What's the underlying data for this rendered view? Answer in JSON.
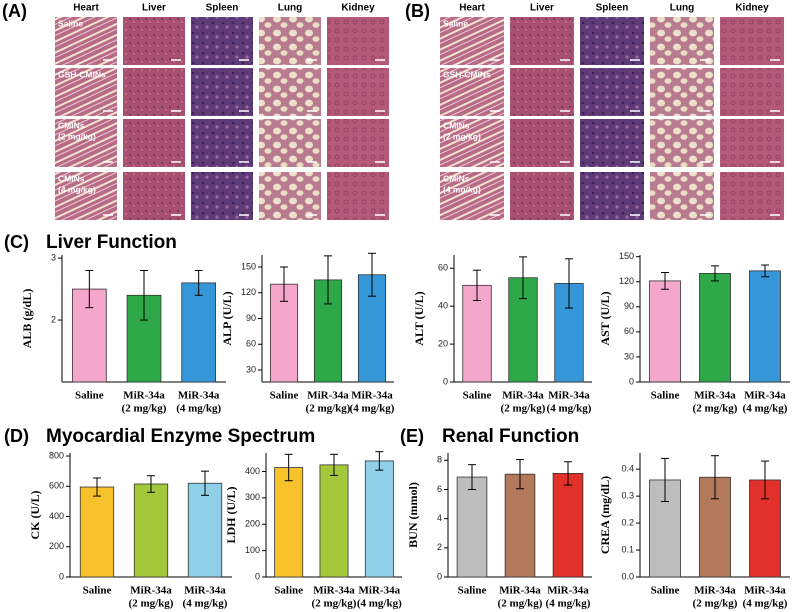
{
  "panels": [
    {
      "label": "(A)",
      "columns": [
        "Heart",
        "Liver",
        "Spleen",
        "Lung",
        "Kidney"
      ],
      "rows": [
        [
          "Saline"
        ],
        [
          "GSH-CMINs"
        ],
        [
          "CMINs",
          "(2 mg/kg)"
        ],
        [
          "CMINs",
          "(4 mg/kg)"
        ]
      ]
    },
    {
      "label": "(B)",
      "columns": [
        "Heart",
        "Liver",
        "Spleen",
        "Lung",
        "Kidney"
      ],
      "rows": [
        [
          "Saline"
        ],
        [
          "GSH-CMINs"
        ],
        [
          "CMINs",
          "(2 mg/kg)"
        ],
        [
          "CMINs",
          "(4 mg/kg)"
        ]
      ]
    }
  ],
  "sections": [
    {
      "label": "(C)",
      "title": "Liver Function"
    },
    {
      "label": "(D)",
      "title": "Myocardial Enzyme Spectrum"
    },
    {
      "label": "(E)",
      "title": "Renal Function"
    }
  ],
  "chart_data": [
    {
      "type": "bar",
      "ylabel": "ALB (g/dL)",
      "categories": [
        [
          "Saline"
        ],
        [
          "MiR-34a",
          "(2 mg/kg)"
        ],
        [
          "MiR-34a",
          "(4 mg/kg)"
        ]
      ],
      "values": [
        2.5,
        2.4,
        2.6
      ],
      "errors": [
        0.3,
        0.4,
        0.2
      ],
      "colors": [
        "#f4a6cb",
        "#2fa84a",
        "#3597d8"
      ],
      "ylim": [
        1,
        3.05
      ],
      "yticks": [
        2,
        3
      ]
    },
    {
      "type": "bar",
      "ylabel": "ALP (U/L)",
      "categories": [
        [
          "Saline"
        ],
        [
          "MiR-34a",
          "(2 mg/kg)"
        ],
        [
          "MiR-34a",
          "(4 mg/kg)"
        ]
      ],
      "values": [
        130,
        135,
        141
      ],
      "errors": [
        20,
        28,
        25
      ],
      "colors": [
        "#f4a6cb",
        "#2fa84a",
        "#3597d8"
      ],
      "ylim": [
        16,
        164
      ],
      "yticks": [
        30,
        60,
        90,
        120,
        150
      ]
    },
    {
      "type": "bar",
      "ylabel": "ALT (U/L)",
      "categories": [
        [
          "Saline"
        ],
        [
          "MiR-34a",
          "(2 mg/kg)"
        ],
        [
          "MiR-34a",
          "(4 mg/kg)"
        ]
      ],
      "values": [
        51,
        55,
        52
      ],
      "errors": [
        8,
        11,
        13
      ],
      "colors": [
        "#f4a6cb",
        "#2fa84a",
        "#3597d8"
      ],
      "ylim": [
        0,
        67
      ],
      "yticks": [
        0,
        20,
        40,
        60
      ]
    },
    {
      "type": "bar",
      "ylabel": "AST (U/L)",
      "categories": [
        [
          "Saline"
        ],
        [
          "MiR-34a",
          "(2 mg/kg)"
        ],
        [
          "MiR-34a",
          "(4 mg/kg)"
        ]
      ],
      "values": [
        121,
        130,
        133
      ],
      "errors": [
        10,
        9,
        7
      ],
      "colors": [
        "#f4a6cb",
        "#2fa84a",
        "#3597d8"
      ],
      "ylim": [
        0,
        152
      ],
      "yticks": [
        0,
        30,
        60,
        90,
        120,
        150
      ]
    },
    {
      "type": "bar",
      "ylabel": "CK (U/L)",
      "categories": [
        [
          "Saline"
        ],
        [
          "MiR-34a",
          "(2 mg/kg)"
        ],
        [
          "MiR-34a",
          "(4 mg/kg)"
        ]
      ],
      "values": [
        595,
        615,
        620
      ],
      "errors": [
        60,
        55,
        80
      ],
      "colors": [
        "#f6c12b",
        "#a3c93b",
        "#8fd0e8"
      ],
      "ylim": [
        0,
        820
      ],
      "yticks": [
        0,
        200,
        400,
        600,
        800
      ]
    },
    {
      "type": "bar",
      "ylabel": "LDH (U/L)",
      "categories": [
        [
          "Saline"
        ],
        [
          "MiR-34a",
          "(2 mg/kg)"
        ],
        [
          "MiR-34a",
          "(4 mg/kg)"
        ]
      ],
      "values": [
        415,
        425,
        440
      ],
      "errors": [
        50,
        40,
        35
      ],
      "colors": [
        "#f6c12b",
        "#a3c93b",
        "#8fd0e8"
      ],
      "ylim": [
        0,
        470
      ],
      "yticks": [
        0,
        100,
        200,
        300,
        400
      ]
    },
    {
      "type": "bar",
      "ylabel": "BUN (mmol)",
      "categories": [
        [
          "Saline"
        ],
        [
          "MiR-34a",
          "(2 mg/kg)"
        ],
        [
          "MiR-34a",
          "(4 mg/kg)"
        ]
      ],
      "values": [
        6.85,
        7.05,
        7.1
      ],
      "errors": [
        0.85,
        1.0,
        0.8
      ],
      "colors": [
        "#bdbdbd",
        "#b27a5b",
        "#e2302a"
      ],
      "ylim": [
        0,
        8.5
      ],
      "yticks": [
        0,
        2,
        4,
        6,
        8
      ]
    },
    {
      "type": "bar",
      "ylabel": "CREA (mg/dL)",
      "categories": [
        [
          "Saline"
        ],
        [
          "MiR-34a",
          "(2 mg/kg)"
        ],
        [
          "MiR-34a",
          "(4 mg/kg)"
        ]
      ],
      "values": [
        0.36,
        0.37,
        0.36
      ],
      "errors": [
        0.08,
        0.08,
        0.07
      ],
      "colors": [
        "#bdbdbd",
        "#b27a5b",
        "#e2302a"
      ],
      "ylim": [
        0,
        0.46
      ],
      "yticks": [
        {
          "value": 0,
          "label": "0.0"
        },
        0.1,
        0.2,
        0.3,
        0.4
      ]
    }
  ]
}
